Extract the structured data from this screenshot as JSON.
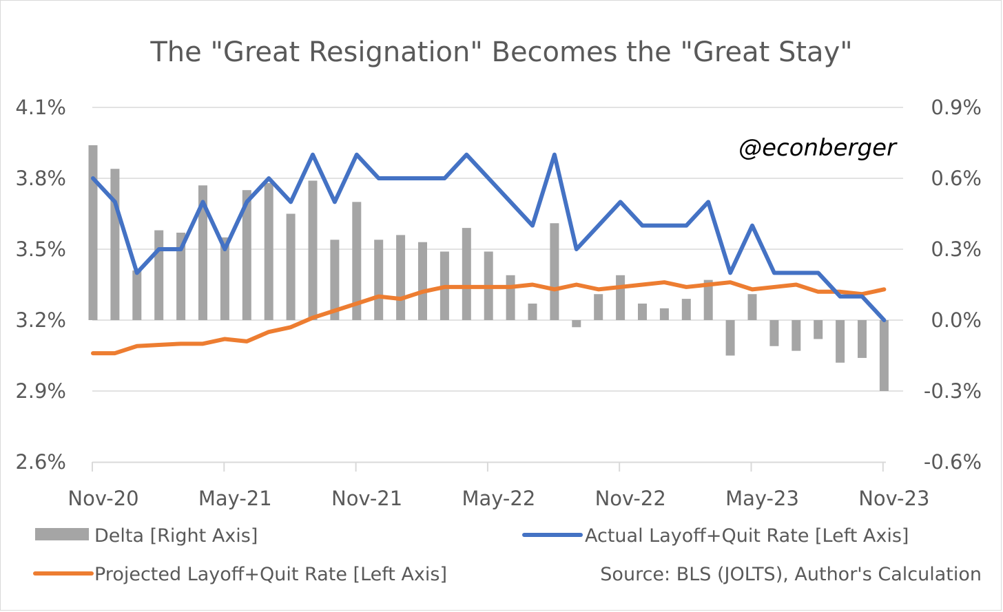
{
  "colors": {
    "actual": "#4472C4",
    "projected": "#ED7D31",
    "delta": "#A5A5A5",
    "grid": "#d9d9d9",
    "text": "#595959"
  },
  "watermark": "@econberger",
  "source": "Source: BLS (JOLTS), Author's Calculation",
  "chart_data": {
    "type": "bar+line",
    "title": "The \"Great Resignation\" Becomes the \"Great Stay\"",
    "left_axis": {
      "range": [
        2.6,
        4.1
      ],
      "ticks": [
        "4.1%",
        "3.8%",
        "3.5%",
        "3.2%",
        "2.9%",
        "2.6%"
      ]
    },
    "right_axis": {
      "range": [
        -0.6,
        0.9
      ],
      "ticks": [
        "0.9%",
        "0.6%",
        "0.3%",
        "0.0%",
        "-0.3%",
        "-0.6%"
      ]
    },
    "x_ticks": [
      "Nov-20",
      "May-21",
      "Nov-21",
      "May-22",
      "Nov-22",
      "May-23",
      "Nov-23"
    ],
    "x_tick_indices": [
      0,
      6,
      12,
      18,
      24,
      30,
      36
    ],
    "legend": "bottom",
    "grid": true,
    "series": [
      {
        "name": "Delta [Right Axis]",
        "type": "bar",
        "axis": "right",
        "values": [
          0.74,
          0.64,
          0.21,
          0.38,
          0.37,
          0.57,
          0.35,
          0.55,
          0.58,
          0.45,
          0.59,
          0.34,
          0.5,
          0.34,
          0.36,
          0.33,
          0.29,
          0.39,
          0.29,
          0.19,
          0.07,
          0.41,
          -0.03,
          0.11,
          0.19,
          0.07,
          0.05,
          0.09,
          0.17,
          -0.15,
          0.11,
          -0.11,
          -0.13,
          -0.08,
          -0.18,
          -0.16,
          -0.3
        ]
      },
      {
        "name": "Actual Layoff+Quit Rate [Left Axis]",
        "type": "line",
        "axis": "left",
        "values": [
          3.8,
          3.7,
          3.4,
          3.5,
          3.5,
          3.7,
          3.5,
          3.7,
          3.8,
          3.7,
          3.9,
          3.7,
          3.9,
          3.8,
          3.8,
          3.8,
          3.8,
          3.9,
          3.8,
          3.7,
          3.6,
          3.9,
          3.5,
          3.6,
          3.7,
          3.6,
          3.6,
          3.6,
          3.7,
          3.4,
          3.6,
          3.4,
          3.4,
          3.4,
          3.3,
          3.3,
          3.2
        ]
      },
      {
        "name": "Projected Layoff+Quit Rate [Left Axis]",
        "type": "line",
        "axis": "left",
        "values": [
          3.06,
          3.06,
          3.09,
          3.095,
          3.1,
          3.1,
          3.12,
          3.11,
          3.15,
          3.17,
          3.21,
          3.24,
          3.27,
          3.3,
          3.29,
          3.32,
          3.34,
          3.34,
          3.34,
          3.34,
          3.35,
          3.33,
          3.35,
          3.33,
          3.34,
          3.35,
          3.36,
          3.34,
          3.35,
          3.36,
          3.33,
          3.34,
          3.35,
          3.32,
          3.32,
          3.31,
          3.33
        ]
      }
    ]
  }
}
